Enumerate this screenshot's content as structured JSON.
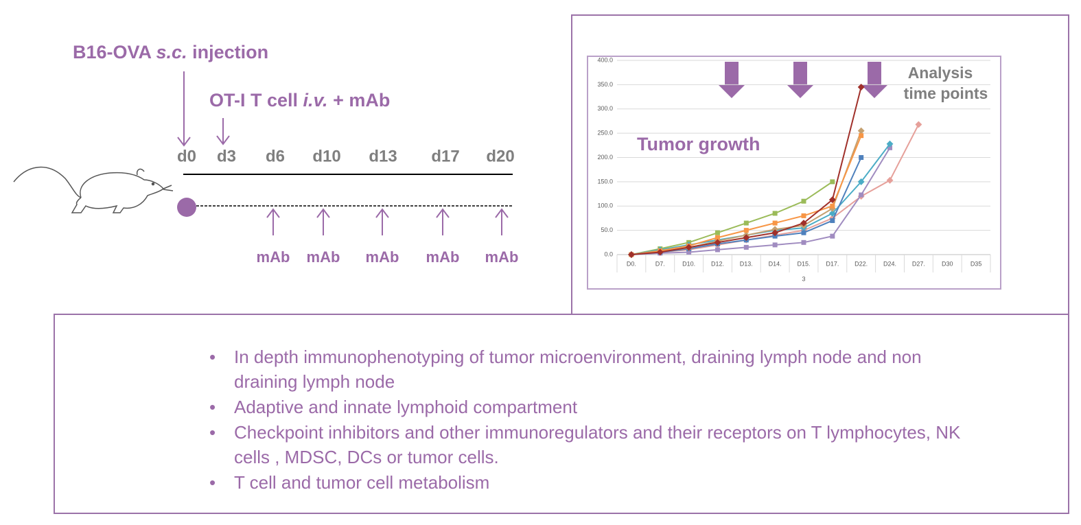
{
  "timeline": {
    "injection": [
      "B16-OVA ",
      "s.c.",
      " injection"
    ],
    "transfer": [
      "OT-I T cell ",
      "i.v.",
      " + mAb"
    ],
    "days": [
      "d0",
      "d3",
      "d6",
      "d10",
      "d13",
      "d17",
      "d20"
    ],
    "treatments": [
      "mAb",
      "mAb",
      "mAb",
      "mAb",
      "mAb"
    ]
  },
  "chart_data": {
    "type": "line",
    "annotations": [
      "Tumor growth",
      "Analysis",
      "time points"
    ],
    "xlabel": "3",
    "categories": [
      "D0.",
      "D7.",
      "D10.",
      "D12.",
      "D13.",
      "D14.",
      "D15.",
      "D17.",
      "D22.",
      "D24.",
      "D27.",
      "D30",
      "D35"
    ],
    "ylim": [
      0,
      400
    ],
    "yticks": [
      {
        "value": 0,
        "label": "0.0"
      },
      {
        "value": 50,
        "label": "50.0"
      },
      {
        "value": 100,
        "label": "100.0"
      },
      {
        "value": 150,
        "label": "150.0"
      },
      {
        "value": 200,
        "label": "200.0"
      },
      {
        "value": 250,
        "label": "250.0"
      },
      {
        "value": 300,
        "label": "300.0"
      },
      {
        "value": 350,
        "label": "350.0"
      },
      {
        "value": 400,
        "label": "400.0"
      }
    ],
    "grid": true,
    "series": [
      {
        "color": "#9bbb59",
        "values": [
          0,
          12,
          25,
          45,
          65,
          85,
          110,
          150,
          null,
          null,
          null,
          null,
          null
        ]
      },
      {
        "color": "#e6a09a",
        "values": [
          0,
          5,
          10,
          20,
          30,
          40,
          50,
          75,
          120,
          153,
          268,
          null,
          null
        ]
      },
      {
        "color": "#a08cc0",
        "values": [
          0,
          3,
          5,
          10,
          15,
          20,
          25,
          38,
          123,
          220,
          null,
          null,
          null
        ]
      },
      {
        "color": "#4bacc6",
        "values": [
          0,
          10,
          20,
          30,
          40,
          50,
          55,
          85,
          150,
          228,
          null,
          null,
          null
        ]
      },
      {
        "color": "#4f81bd",
        "values": [
          0,
          5,
          12,
          22,
          30,
          38,
          45,
          70,
          200,
          null,
          null,
          null,
          null
        ]
      },
      {
        "color": "#c4a070",
        "values": [
          0,
          6,
          14,
          28,
          40,
          52,
          60,
          95,
          255,
          null,
          null,
          null,
          null
        ]
      },
      {
        "color": "#f79646",
        "values": [
          0,
          8,
          18,
          35,
          50,
          65,
          80,
          100,
          245,
          null,
          null,
          null,
          null
        ]
      },
      {
        "color": "#a0302a",
        "values": [
          0,
          5,
          15,
          25,
          35,
          45,
          65,
          113,
          345,
          null,
          null,
          null,
          null
        ]
      }
    ]
  },
  "bullets": [
    "In depth immunophenotyping of tumor microenvironment, draining lymph node and non draining lymph node",
    "Adaptive and innate lymphoid compartment",
    "Checkpoint inhibitors and other immunoregulators and their receptors on T lymphocytes, NK cells , MDSC, DCs or tumor cells.",
    "T cell  and tumor cell metabolism"
  ]
}
